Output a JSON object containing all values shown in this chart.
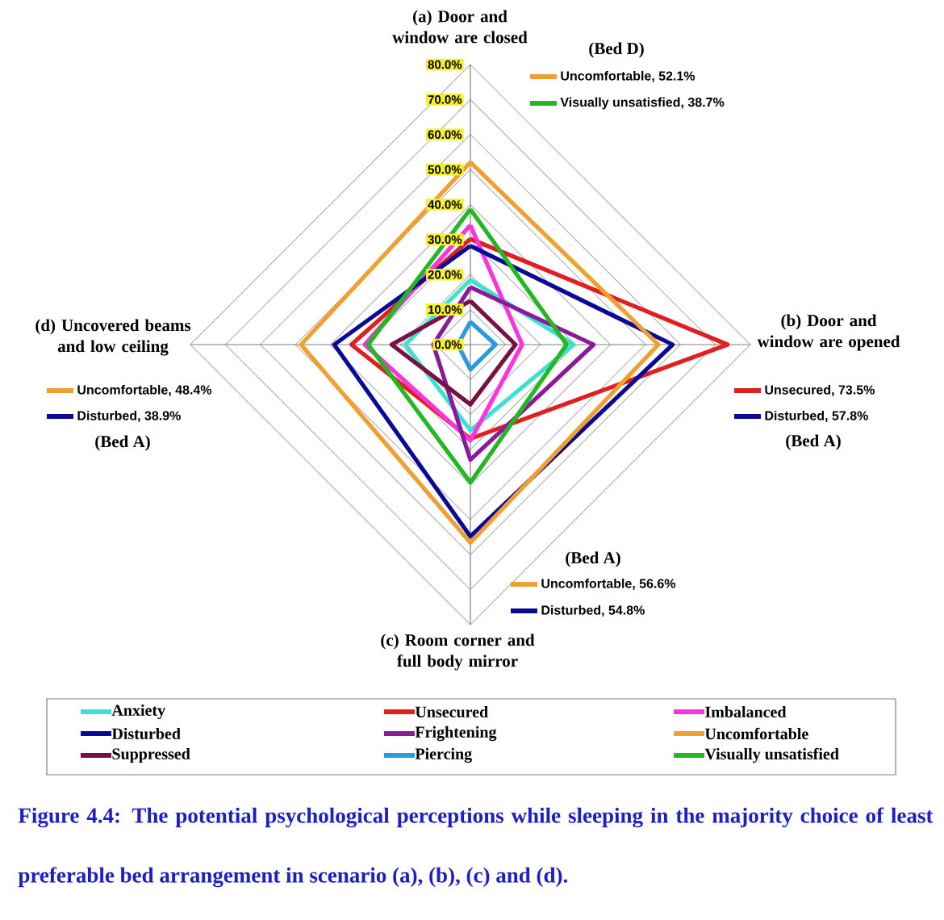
{
  "chart_data": {
    "type": "radar",
    "categories": [
      "(a) Door and window are closed",
      "(b) Door and window are opened",
      "(c) Room corner and full body mirror",
      "(d) Uncovered beams and low ceiling"
    ],
    "ylim": [
      0,
      80
    ],
    "yticks": [
      {
        "value": 0,
        "label": "0.0%"
      },
      {
        "value": 10,
        "label": "10.0%"
      },
      {
        "value": 20,
        "label": "20.0%"
      },
      {
        "value": 30,
        "label": "30.0%"
      },
      {
        "value": 40,
        "label": "40.0%"
      },
      {
        "value": 50,
        "label": "50.0%"
      },
      {
        "value": 60,
        "label": "60.0%"
      },
      {
        "value": 70,
        "label": "70.0%"
      },
      {
        "value": 80,
        "label": "80.0%"
      }
    ],
    "grid": true,
    "legend": "bottom",
    "series": [
      {
        "name": "Anxiety",
        "color": "#40e0d0",
        "values": [
          18.5,
          29.5,
          24.5,
          18.6
        ]
      },
      {
        "name": "Unsecured",
        "color": "#e02020",
        "values": [
          30.2,
          73.5,
          26.9,
          34.0
        ]
      },
      {
        "name": "Imbalanced",
        "color": "#ff33dd",
        "values": [
          34.1,
          14.8,
          27.4,
          30.2
        ]
      },
      {
        "name": "Disturbed",
        "color": "#0a0a96",
        "values": [
          28.2,
          57.8,
          54.8,
          38.9
        ]
      },
      {
        "name": "Frightening",
        "color": "#8b1a9b",
        "values": [
          16.4,
          35.2,
          32.9,
          10.6
        ]
      },
      {
        "name": "Uncomfortable",
        "color": "#f0a030",
        "values": [
          52.1,
          53.7,
          56.6,
          48.4
        ]
      },
      {
        "name": "Suppressed",
        "color": "#7a1040",
        "values": [
          12.5,
          12.9,
          17.1,
          22.5
        ]
      },
      {
        "name": "Piercing",
        "color": "#2a9ae0",
        "values": [
          6.5,
          7.2,
          7.1,
          3.6
        ]
      },
      {
        "name": "Visually unsatisfied",
        "color": "#22b822",
        "values": [
          38.7,
          27.5,
          39.4,
          29.2
        ]
      }
    ],
    "annotations": [
      "(Bed D)",
      "Uncomfortable, 52.1%",
      "Visually unsatisfied, 38.7%",
      "Unsecured, 73.5%",
      "Disturbed, 57.8%",
      "(Bed A)",
      "(Bed A)",
      "Uncomfortable, 56.6%",
      "Disturbed, 54.8%",
      "Uncomfortable, 48.4%",
      "Disturbed, 38.9%",
      "(Bed A)",
      "Figure 4.4: The potential psychological perceptions while sleeping in the majority choice of least preferable bed arrangement in scenario (a), (b), (c) and (d)."
    ]
  }
}
